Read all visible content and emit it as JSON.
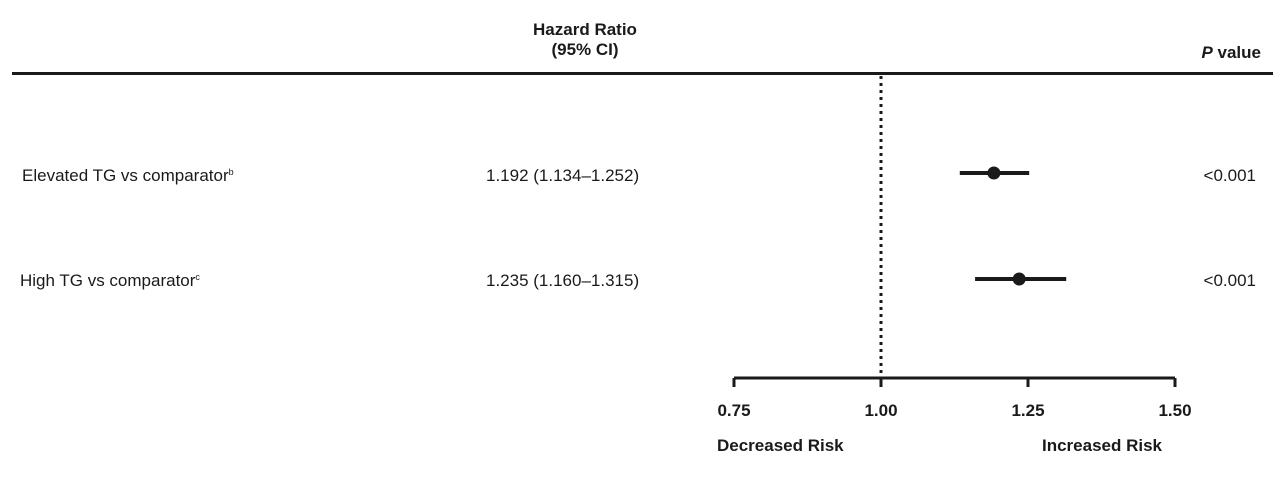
{
  "header": {
    "hr_title_line1": "Hazard Ratio",
    "hr_title_line2": "(95% CI)",
    "p_italic": "P",
    "p_rest": " value"
  },
  "rows": [
    {
      "label": "Elevated TG vs comparator",
      "sup": "b",
      "hr_text": "1.192 (1.134–1.252)",
      "p": "<0.001"
    },
    {
      "label": "High TG vs comparator",
      "sup": "c",
      "hr_text": "1.235 (1.160–1.315)",
      "p": "<0.001"
    }
  ],
  "axis_labels": {
    "decreased": "Decreased Risk",
    "increased": "Increased Risk"
  },
  "chart_data": {
    "type": "forest",
    "reference_line": 1.0,
    "xlim": [
      0.75,
      1.5
    ],
    "xticks": [
      0.75,
      1.0,
      1.25,
      1.5
    ],
    "xtick_labels": [
      "0.75",
      "1.00",
      "1.25",
      "1.50"
    ],
    "series": [
      {
        "name": "Elevated TG vs comparator",
        "estimate": 1.192,
        "lower": 1.134,
        "upper": 1.252
      },
      {
        "name": "High TG vs comparator",
        "estimate": 1.235,
        "lower": 1.16,
        "upper": 1.315
      }
    ]
  }
}
